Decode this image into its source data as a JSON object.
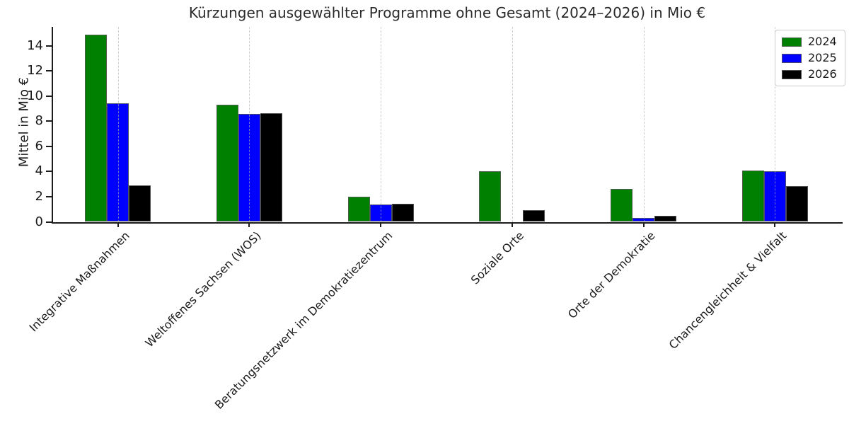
{
  "chart_data": {
    "type": "bar",
    "title": "Kürzungen ausgewählter Programme ohne Gesamt (2024–2026) in Mio €",
    "ylabel": "Mittel in Mio €",
    "xlabel": "",
    "categories": [
      "Integrative Maßnahmen",
      "Weltoffenes Sachsen (WOS)",
      "Beratungsnetzwerk im Demokratiezentrum",
      "Soziale Orte",
      "Orte der Demokratie",
      "Chancengleichheit & Vielfalt"
    ],
    "series": [
      {
        "name": "2024",
        "color": "#008000",
        "values": [
          14.9,
          9.3,
          2.0,
          4.0,
          2.6,
          4.1
        ]
      },
      {
        "name": "2025",
        "color": "#0000ff",
        "values": [
          9.4,
          8.6,
          1.4,
          0,
          0.3,
          4.0
        ]
      },
      {
        "name": "2026",
        "color": "#000000",
        "values": [
          2.9,
          8.65,
          1.45,
          0.95,
          0.5,
          2.85
        ]
      }
    ],
    "ylim": [
      0,
      15.5
    ],
    "yticks": [
      0,
      2,
      4,
      6,
      8,
      10,
      12,
      14
    ],
    "grid": "vertical-dashed-at-categories",
    "legend_position": "upper-right",
    "bar_edge_color": "#5a5a5a",
    "gridline_color": "#b0b0b0"
  }
}
